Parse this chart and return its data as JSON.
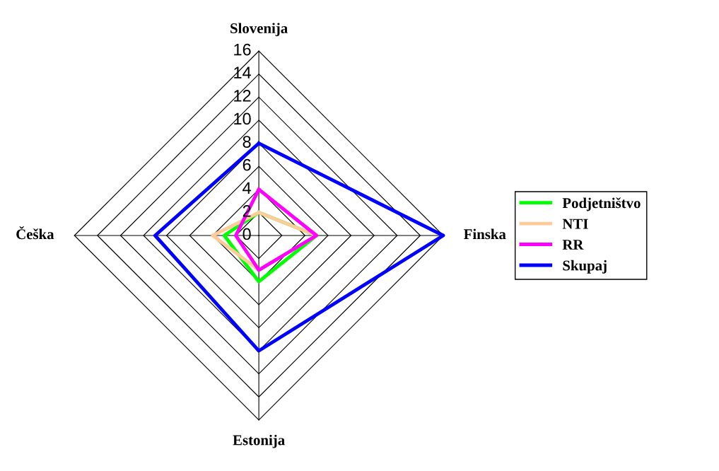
{
  "chart_data": {
    "type": "radar",
    "categories": [
      "Slovenija",
      "Finska",
      "Estonija",
      "Češka"
    ],
    "series": [
      {
        "name": "Podjetništvo",
        "color": "#00ff00",
        "values": [
          2,
          5,
          4,
          3
        ]
      },
      {
        "name": "NTI",
        "color": "#ffcc99",
        "values": [
          2,
          5,
          3,
          4
        ]
      },
      {
        "name": "RR",
        "color": "#ff00ff",
        "values": [
          4,
          5,
          3,
          2
        ]
      },
      {
        "name": "Skupaj",
        "color": "#0000ff",
        "values": [
          8,
          16,
          10,
          9
        ]
      }
    ],
    "ylim": [
      0,
      16
    ],
    "yticks": [
      0,
      2,
      4,
      6,
      8,
      10,
      12,
      14,
      16
    ],
    "grid": true,
    "legend": "right"
  }
}
